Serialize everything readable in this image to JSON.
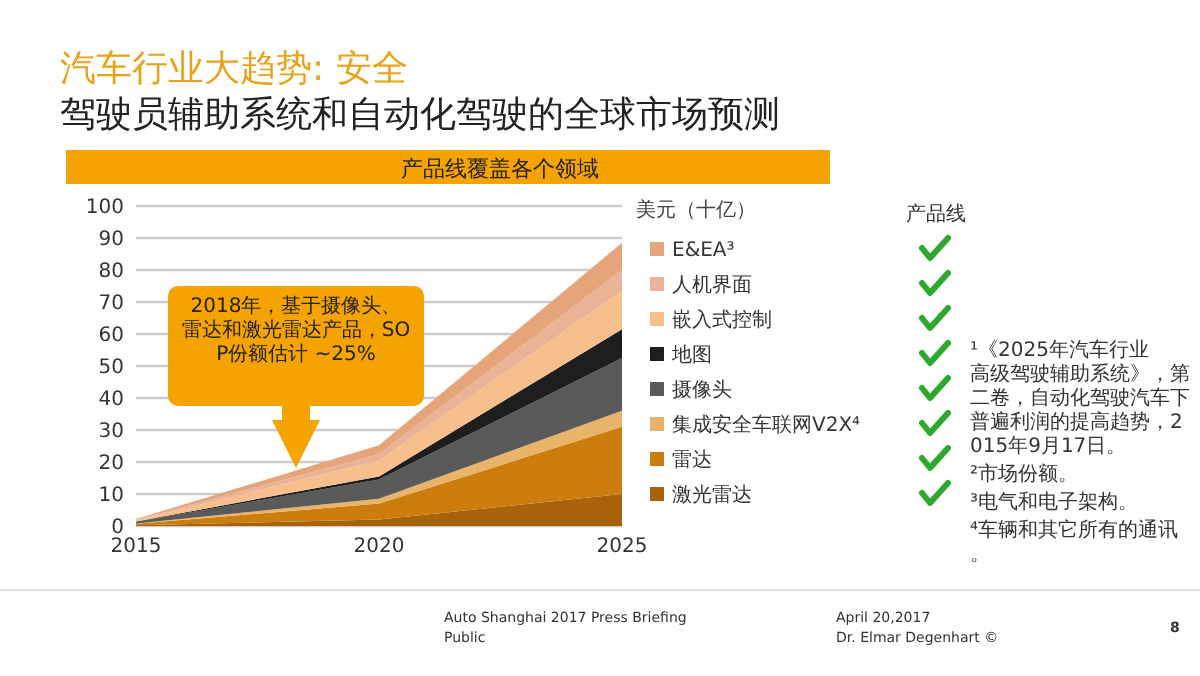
{
  "chart_data": {
    "type": "area",
    "stacked": true,
    "title": "汽车行业大趋势: 安全",
    "subtitle": "驾驶员辅助系统和自动化驾驶的全球市场预测",
    "ylabel": "美元（十亿）",
    "legend_title": "产品线",
    "x": [
      2015,
      2020,
      2025
    ],
    "xlim": [
      2015,
      2025
    ],
    "xticks": [
      2015,
      2020,
      2025
    ],
    "ylim": [
      0,
      100
    ],
    "yticks": [
      0,
      10,
      20,
      30,
      40,
      50,
      60,
      70,
      80,
      90,
      100
    ],
    "grid": "y",
    "legend": "right",
    "series": [
      {
        "name": "激光雷达",
        "color": "#a8620a",
        "values": [
          0.2,
          2,
          10
        ]
      },
      {
        "name": "雷达",
        "color": "#cc7d0e",
        "values": [
          0.5,
          5,
          21
        ]
      },
      {
        "name": "集成安全车联网V2X⁴",
        "color": "#e9b46a",
        "values": [
          0.1,
          1.5,
          5
        ]
      },
      {
        "name": "摄像头",
        "color": "#5a5a5a",
        "values": [
          0.5,
          6,
          16.5
        ]
      },
      {
        "name": "地图",
        "color": "#1e1e1e",
        "values": [
          0.1,
          1,
          9
        ]
      },
      {
        "name": "嵌入式控制",
        "color": "#f7bf8c",
        "values": [
          0.3,
          5,
          12
        ]
      },
      {
        "name": "人机界面",
        "color": "#eab397",
        "values": [
          0.2,
          2,
          6.5
        ]
      },
      {
        "name": "E&EA³",
        "color": "#e6a47a",
        "values": [
          0.3,
          2.7,
          8.5
        ]
      }
    ],
    "annotations": [
      "产品线覆盖各个领域",
      "2018年，基于摄像头、雷达和激光雷达产品，SOP份额估计 ~25%",
      "¹《2025年汽车行业高级驾驶辅助系统》，第二卷，自动化驾驶汽车下普遍利润的提高趋势，2015年9月17日。",
      "²市场份额。",
      "³电气和电子架构。",
      "⁴车辆和其它所有的通讯。",
      "Auto Shanghai 2017 Press Briefing",
      "Public",
      "April 20,2017",
      "Dr. Elmar Degenhart ©",
      "8"
    ]
  }
}
